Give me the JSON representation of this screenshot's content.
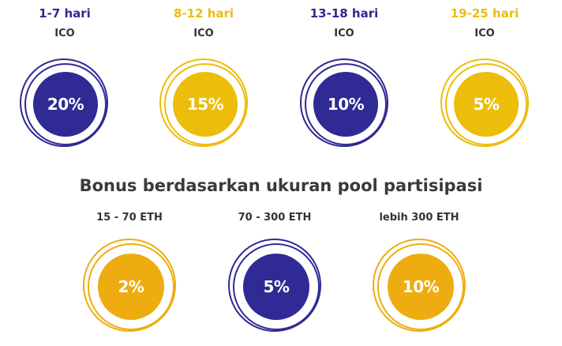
{
  "periods": [
    {
      "days": "1-7 hari",
      "sub": "ICO",
      "bonus": "20%",
      "color": "#2f2a94"
    },
    {
      "days": "8-12 hari",
      "sub": "ICO",
      "bonus": "15%",
      "color": "#ecbd0b"
    },
    {
      "days": "13-18 hari",
      "sub": "ICO",
      "bonus": "10%",
      "color": "#2f2a94"
    },
    {
      "days": "19-25 hari",
      "sub": "ICO",
      "bonus": "5%",
      "color": "#ecbd0b"
    }
  ],
  "section_title": "Bonus berdasarkan ukuran pool partisipasi",
  "pools": [
    {
      "label": "15 - 70 ETH",
      "bonus": "2%",
      "color": "#eeac10"
    },
    {
      "label": "70 - 300 ETH",
      "bonus": "5%",
      "color": "#2f2a94"
    },
    {
      "label": "lebih 300 ETH",
      "bonus": "10%",
      "color": "#eeac10"
    }
  ]
}
